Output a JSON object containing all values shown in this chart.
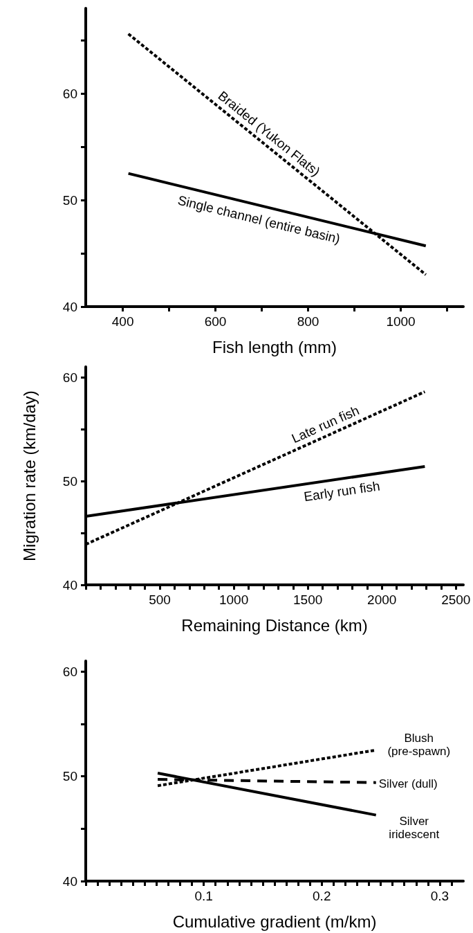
{
  "chart_data": [
    {
      "type": "line",
      "xlabel": "Fish length (mm)",
      "xlim": [
        320,
        1135
      ],
      "ylim": [
        40,
        68
      ],
      "xticks": [
        400,
        {
          "value": 500,
          "label": null
        },
        600,
        {
          "value": 700,
          "label": null
        },
        800,
        {
          "value": 900,
          "label": null
        },
        1000,
        {
          "value": 1100,
          "label": null
        }
      ],
      "yticks": [
        40,
        {
          "value": 45,
          "label": null
        },
        50,
        {
          "value": 55,
          "label": null
        },
        60,
        {
          "value": 65,
          "label": null
        }
      ],
      "grid": false,
      "legend": false,
      "marker": "none",
      "series": [
        {
          "name": "Braided (Yukon Flats)",
          "color": "#000000",
          "line_style": "dotted",
          "x": [
            412,
            1054
          ],
          "values": [
            65.6,
            43.0
          ]
        },
        {
          "name": "Single channel (entire basin)",
          "color": "#000000",
          "line_style": "solid",
          "x": [
            412,
            1054
          ],
          "values": [
            52.5,
            45.7
          ]
        }
      ]
    },
    {
      "type": "line",
      "xlabel": "Remaining Distance (km)",
      "ylabel": "Migration rate (km/day)",
      "xlim": [
        0,
        2550
      ],
      "ylim": [
        40,
        61
      ],
      "xticks": [
        {
          "value": 0,
          "label": null
        },
        {
          "value": 100,
          "label": null
        },
        {
          "value": 200,
          "label": null
        },
        {
          "value": 300,
          "label": null
        },
        {
          "value": 400,
          "label": null
        },
        500,
        {
          "value": 600,
          "label": null
        },
        {
          "value": 700,
          "label": null
        },
        {
          "value": 800,
          "label": null
        },
        {
          "value": 900,
          "label": null
        },
        1000,
        {
          "value": 1100,
          "label": null
        },
        {
          "value": 1200,
          "label": null
        },
        {
          "value": 1300,
          "label": null
        },
        {
          "value": 1400,
          "label": null
        },
        1500,
        {
          "value": 1600,
          "label": null
        },
        {
          "value": 1700,
          "label": null
        },
        {
          "value": 1800,
          "label": null
        },
        {
          "value": 1900,
          "label": null
        },
        2000,
        {
          "value": 2100,
          "label": null
        },
        {
          "value": 2200,
          "label": null
        },
        {
          "value": 2300,
          "label": null
        },
        {
          "value": 2400,
          "label": null
        },
        2500
      ],
      "yticks": [
        40,
        {
          "value": 45,
          "label": null
        },
        50,
        {
          "value": 55,
          "label": null
        },
        60
      ],
      "grid": false,
      "legend": false,
      "marker": "none",
      "series": [
        {
          "name": "Late run fish",
          "color": "#000000",
          "line_style": "dotted",
          "x": [
            0,
            2290
          ],
          "values": [
            43.9,
            58.6
          ]
        },
        {
          "name": "Early run fish",
          "color": "#000000",
          "line_style": "solid",
          "x": [
            0,
            2290
          ],
          "values": [
            46.6,
            51.4
          ]
        }
      ]
    },
    {
      "type": "line",
      "xlabel": "Cumulative gradient (m/km)",
      "xlim": [
        0,
        0.32
      ],
      "ylim": [
        40,
        61
      ],
      "xticks": [
        {
          "value": 0,
          "label": null
        },
        {
          "value": 0.01,
          "label": null
        },
        {
          "value": 0.02,
          "label": null
        },
        {
          "value": 0.03,
          "label": null
        },
        {
          "value": 0.04,
          "label": null
        },
        {
          "value": 0.05,
          "label": null
        },
        {
          "value": 0.06,
          "label": null
        },
        {
          "value": 0.07,
          "label": null
        },
        {
          "value": 0.08,
          "label": null
        },
        {
          "value": 0.09,
          "label": null
        },
        0.1,
        {
          "value": 0.11,
          "label": null
        },
        {
          "value": 0.12,
          "label": null
        },
        {
          "value": 0.13,
          "label": null
        },
        {
          "value": 0.14,
          "label": null
        },
        {
          "value": 0.15,
          "label": null
        },
        {
          "value": 0.16,
          "label": null
        },
        {
          "value": 0.17,
          "label": null
        },
        {
          "value": 0.18,
          "label": null
        },
        {
          "value": 0.19,
          "label": null
        },
        0.2,
        {
          "value": 0.21,
          "label": null
        },
        {
          "value": 0.22,
          "label": null
        },
        {
          "value": 0.23,
          "label": null
        },
        {
          "value": 0.24,
          "label": null
        },
        {
          "value": 0.25,
          "label": null
        },
        {
          "value": 0.26,
          "label": null
        },
        {
          "value": 0.27,
          "label": null
        },
        {
          "value": 0.28,
          "label": null
        },
        {
          "value": 0.29,
          "label": null
        },
        0.3,
        {
          "value": 0.31,
          "label": null
        }
      ],
      "yticks": [
        40,
        {
          "value": 45,
          "label": null
        },
        50,
        {
          "value": 55,
          "label": null
        },
        60
      ],
      "grid": false,
      "legend": false,
      "marker": "none",
      "series": [
        {
          "name": "Blush\n(pre-spawn)",
          "color": "#000000",
          "line_style": "dotted",
          "x": [
            0.061,
            0.246
          ],
          "values": [
            49.1,
            52.5
          ]
        },
        {
          "name": "Silver (dull)",
          "color": "#000000",
          "line_style": "dashed",
          "x": [
            0.061,
            0.246
          ],
          "values": [
            49.7,
            49.4
          ]
        },
        {
          "name": "Silver\niridescent",
          "color": "#000000",
          "line_style": "solid",
          "x": [
            0.061,
            0.246
          ],
          "values": [
            50.3,
            46.3
          ]
        }
      ]
    }
  ]
}
